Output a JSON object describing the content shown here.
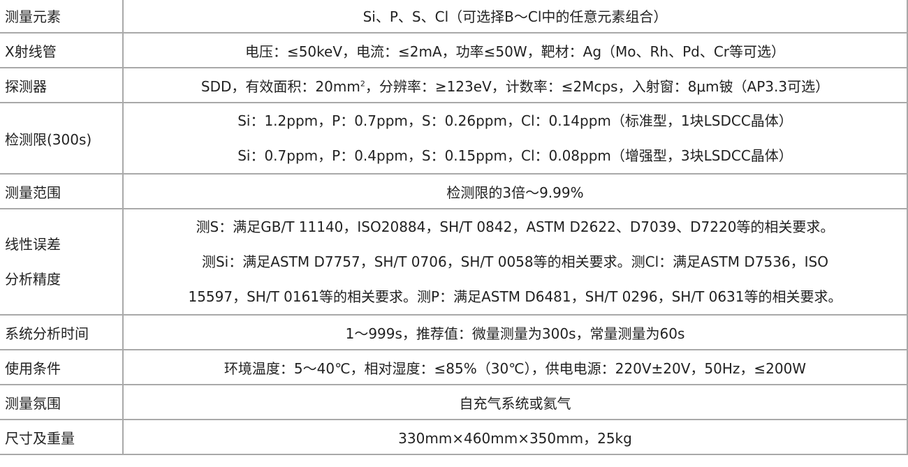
{
  "rows": [
    {
      "label": "测量元素",
      "values": [
        "Si、P、S、Cl（可选择B～Cl中的任意元素组合）"
      ]
    },
    {
      "label": "X射线管",
      "values": [
        "电压：≤50keV，电流：≤2mA，功率≤50W，靶材：Ag（Mo、Rh、Pd、Cr等可选）"
      ]
    },
    {
      "label": "探测器",
      "values_pre": "SDD，有效面积：20mm",
      "values_sup": "2",
      "values_post": "，分辨率：≥123eV，计数率：≤2Mcps，入射窗：8μm铍（AP3.3可选）"
    },
    {
      "label": "检测限(300s)",
      "values": [
        "Si：1.2ppm，P：0.7ppm，S：0.26ppm，Cl：0.14ppm（标准型，1块LSDCC晶体）",
        "Si：0.7ppm，P：0.4ppm，S：0.15ppm，Cl：0.08ppm（增强型，3块LSDCC晶体）"
      ]
    },
    {
      "label": "测量范围",
      "values": [
        "检测限的3倍～9.99%"
      ]
    },
    {
      "label_lines": [
        "线性误差",
        "分析精度"
      ],
      "values": [
        "测S：满足GB/T 11140，ISO20884，SH/T 0842，ASTM D2622、D7039、D7220等的相关要求。",
        "测Si：满足ASTM D7757，SH/T 0706，SH/T 0058等的相关要求。测Cl：满足ASTM D7536，ISO",
        "15597，SH/T 0161等的相关要求。测P：满足ASTM D6481，SH/T 0296，SH/T 0631等的相关要求。"
      ]
    },
    {
      "label": "系统分析时间",
      "values": [
        "1～999s，推荐值：微量测量为300s，常量测量为60s"
      ]
    },
    {
      "label": "使用条件",
      "values": [
        "环境温度：5～40℃，相对湿度：≤85%（30℃），供电电源：220V±20V，50Hz，≤200W"
      ]
    },
    {
      "label": "测量氛围",
      "values": [
        "自充气系统或氦气"
      ]
    },
    {
      "label": "尺寸及重量",
      "values": [
        "330mm×460mm×350mm，25kg"
      ]
    }
  ]
}
